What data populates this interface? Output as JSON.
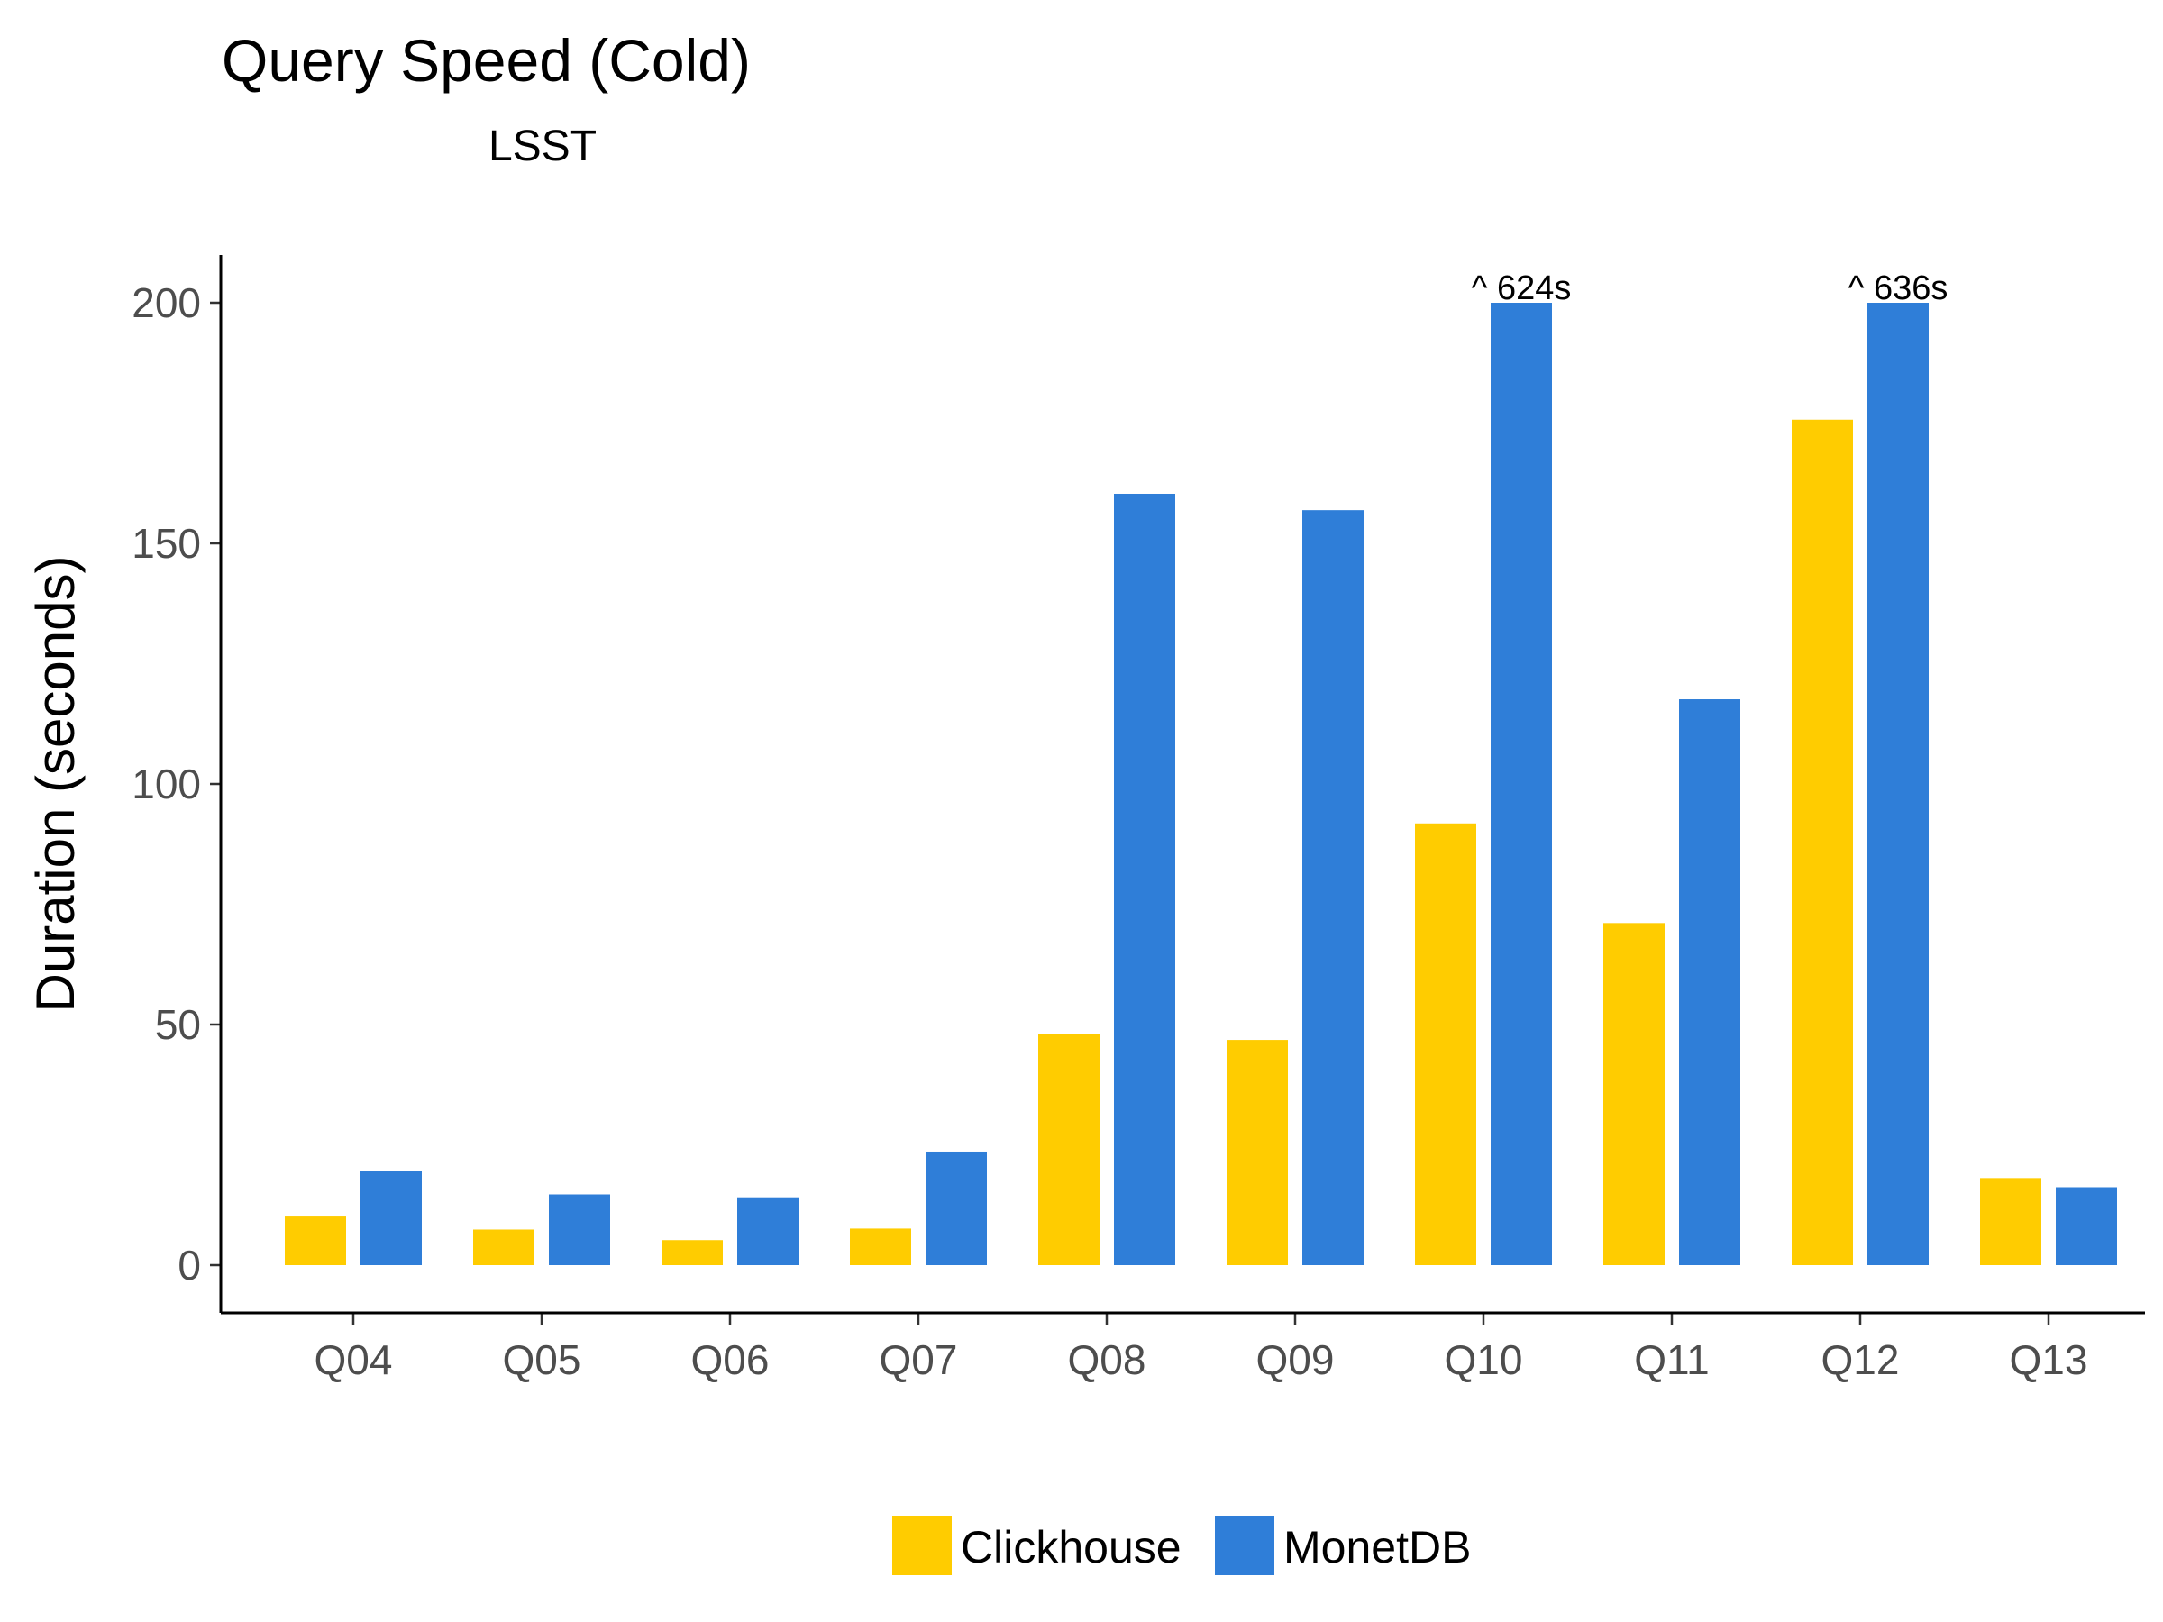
{
  "chart_data": {
    "type": "bar",
    "title": "Query Speed (Cold)",
    "subtitle": "LSST",
    "xlabel": "",
    "ylabel": "Duration (seconds)",
    "ylim": [
      -10,
      210
    ],
    "yticks": [
      0,
      50,
      100,
      150,
      200
    ],
    "grid": false,
    "legend_position": "bottom",
    "categories": [
      "Q04",
      "Q05",
      "Q06",
      "Q07",
      "Q08",
      "Q09",
      "Q10",
      "Q11",
      "Q12",
      "Q13"
    ],
    "series": [
      {
        "name": "Clickhouse",
        "color": "#FFCC00",
        "values": [
          10.1,
          7.4,
          5.2,
          7.6,
          48.1,
          46.8,
          91.8,
          71.1,
          175.7,
          18.1
        ]
      },
      {
        "name": "MonetDB",
        "color": "#2F7ED8",
        "values": [
          19.6,
          14.7,
          14.1,
          23.6,
          160.3,
          156.9,
          200,
          117.6,
          200,
          16.2
        ]
      }
    ],
    "annotations": [
      {
        "category": "Q10",
        "series": "MonetDB",
        "text": "^ 624s"
      },
      {
        "category": "Q12",
        "series": "MonetDB",
        "text": "^ 636s"
      }
    ]
  }
}
